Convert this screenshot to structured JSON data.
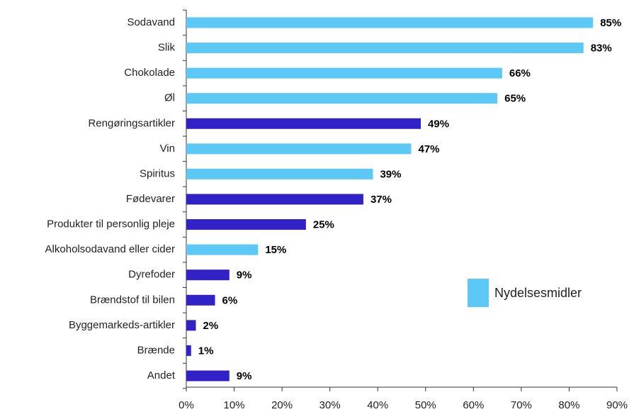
{
  "chart_data": {
    "type": "hbar",
    "categories": [
      "Sodavand",
      "Slik",
      "Chokolade",
      "Øl",
      "Rengøringsartikler",
      "Vin",
      "Spiritus",
      "Fødevarer",
      "Produkter til personlig pleje",
      "Alkoholsodavand eller cider",
      "Dyrefoder",
      "Brændstof til bilen",
      "Byggemarkeds-artikler",
      "Brænde",
      "Andet"
    ],
    "values": [
      85,
      83,
      66,
      65,
      49,
      47,
      39,
      37,
      25,
      15,
      9,
      6,
      2,
      1,
      9
    ],
    "value_labels": [
      "85%",
      "83%",
      "66%",
      "65%",
      "49%",
      "47%",
      "39%",
      "37%",
      "25%",
      "15%",
      "9%",
      "6%",
      "2%",
      "1%",
      "9%"
    ],
    "colors": [
      "#5bc8f5",
      "#5bc8f5",
      "#5bc8f5",
      "#5bc8f5",
      "#3122c8",
      "#5bc8f5",
      "#5bc8f5",
      "#3122c8",
      "#3122c8",
      "#5bc8f5",
      "#3122c8",
      "#3122c8",
      "#3122c8",
      "#3122c8",
      "#3122c8"
    ],
    "legend": {
      "label": "Nydelsesmidler",
      "color": "#5bc8f5"
    },
    "xlim": [
      0,
      90
    ],
    "xticks": [
      {
        "value": 0,
        "label": "0%"
      },
      {
        "value": 10,
        "label": "10%"
      },
      {
        "value": 20,
        "label": "20%"
      },
      {
        "value": 30,
        "label": "30%"
      },
      {
        "value": 40,
        "label": "40%"
      },
      {
        "value": 50,
        "label": "50%"
      },
      {
        "value": 60,
        "label": "60%"
      },
      {
        "value": 70,
        "label": "70%"
      },
      {
        "value": 80,
        "label": "80%"
      },
      {
        "value": 90,
        "label": "90%"
      }
    ]
  }
}
